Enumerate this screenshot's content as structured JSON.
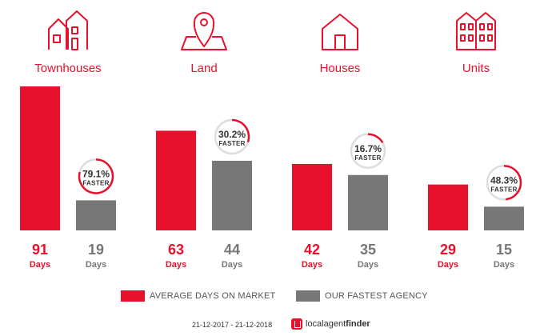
{
  "chart_data": {
    "type": "bar",
    "categories": [
      "Townhouses",
      "Land",
      "Houses",
      "Units"
    ],
    "category_icons": [
      "townhouse-icon",
      "land-pin-icon",
      "house-icon",
      "units-icon"
    ],
    "unit": "Days",
    "faster_word": "FASTER",
    "series": [
      {
        "name": "AVERAGE DAYS ON MARKET",
        "color": "#e8112d",
        "values": [
          91,
          63,
          42,
          29
        ]
      },
      {
        "name": "OUR FASTEST AGENCY",
        "color": "#777777",
        "values": [
          19,
          44,
          35,
          15
        ]
      }
    ],
    "faster_labels": [
      "79.1%",
      "30.2%",
      "16.7%",
      "48.3%"
    ],
    "faster_values": [
      79.1,
      30.2,
      16.7,
      48.3
    ],
    "ylim": [
      0,
      91
    ]
  },
  "legend": {
    "market_label": "AVERAGE DAYS ON MARKET",
    "agency_label": "OUR FASTEST AGENCY"
  },
  "footer": {
    "date_range": "21-12-2017 - 21-12-2018",
    "brand_light": "localagent",
    "brand_bold": "finder"
  },
  "colors": {
    "accent": "#e8112d",
    "grey": "#777777",
    "ring_track": "#dddddd"
  }
}
